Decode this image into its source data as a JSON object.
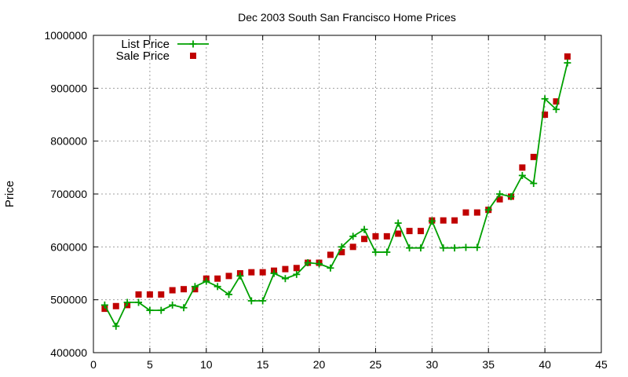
{
  "chart_data": {
    "type": "line",
    "title": "Dec 2003 South San Francisco Home Prices",
    "xlabel": "",
    "ylabel": "Price",
    "xlim": [
      0,
      45
    ],
    "ylim": [
      400000,
      1000000
    ],
    "xticks": [
      0,
      5,
      10,
      15,
      20,
      25,
      30,
      35,
      40,
      45
    ],
    "yticks": [
      400000,
      500000,
      600000,
      700000,
      800000,
      900000,
      1000000
    ],
    "xtick_labels": [
      "0",
      "5",
      "10",
      "15",
      "20",
      "25",
      "30",
      "35",
      "40",
      "45"
    ],
    "ytick_labels": [
      "400000",
      "500000",
      "600000",
      "700000",
      "800000",
      "900000",
      "1000000"
    ],
    "grid": true,
    "legend_position": "top-left",
    "series": [
      {
        "name": "List Price",
        "style": "linespoints",
        "marker": "plus",
        "color": "#00a000",
        "x": [
          1,
          2,
          3,
          4,
          5,
          6,
          7,
          8,
          9,
          10,
          11,
          12,
          13,
          14,
          15,
          16,
          17,
          18,
          19,
          20,
          21,
          22,
          23,
          24,
          25,
          26,
          27,
          28,
          29,
          30,
          31,
          32,
          33,
          34,
          35,
          36,
          37,
          38,
          39,
          40,
          41,
          42
        ],
        "y": [
          490000,
          450000,
          495000,
          495000,
          480000,
          480000,
          490000,
          485000,
          525000,
          535000,
          525000,
          510000,
          545000,
          498000,
          498000,
          550000,
          540000,
          548000,
          570000,
          568000,
          560000,
          600000,
          620000,
          633000,
          590000,
          590000,
          645000,
          598000,
          598000,
          649000,
          598000,
          598000,
          599000,
          599000,
          670000,
          700000,
          695000,
          735000,
          720000,
          880000,
          860000,
          948000
        ]
      },
      {
        "name": "Sale Price",
        "style": "points",
        "marker": "square",
        "color": "#c00000",
        "x": [
          1,
          2,
          3,
          4,
          5,
          6,
          7,
          8,
          9,
          10,
          11,
          12,
          13,
          14,
          15,
          16,
          17,
          18,
          19,
          20,
          21,
          22,
          23,
          24,
          25,
          26,
          27,
          28,
          29,
          30,
          31,
          32,
          33,
          34,
          35,
          36,
          37,
          38,
          39,
          40,
          41,
          42
        ],
        "y": [
          483000,
          488000,
          490000,
          510000,
          510000,
          510000,
          518000,
          520000,
          520000,
          540000,
          540000,
          545000,
          550000,
          552000,
          552000,
          555000,
          558000,
          560000,
          570000,
          570000,
          585000,
          590000,
          600000,
          615000,
          620000,
          620000,
          625000,
          630000,
          630000,
          650000,
          650000,
          650000,
          665000,
          665000,
          670000,
          690000,
          695000,
          750000,
          770000,
          850000,
          875000,
          960000
        ]
      }
    ]
  }
}
